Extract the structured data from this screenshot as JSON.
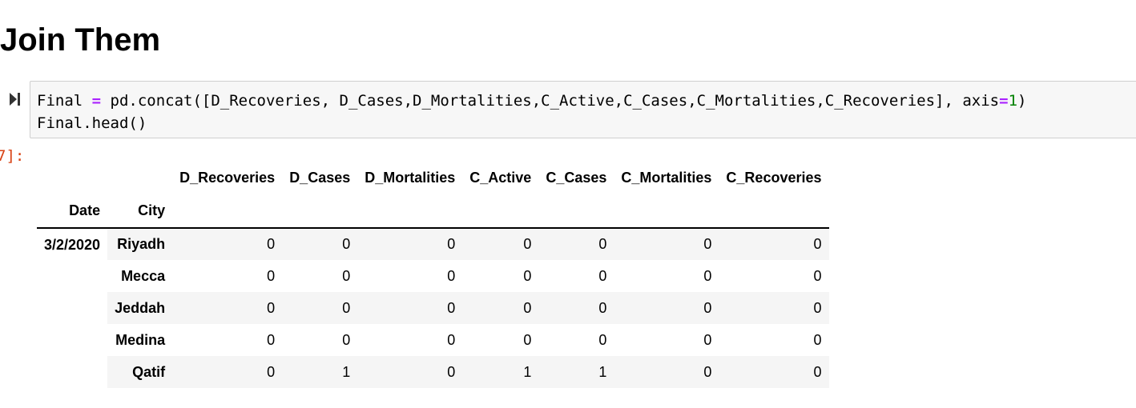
{
  "heading": "Join Them",
  "code_cell": {
    "line1": {
      "a": "Final ",
      "op": "=",
      "b": " pd.concat([D_Recoveries, D_Cases,D_Mortalities,C_Active,C_Cases,C_Mortalities,C_Recoveries], axis",
      "op2": "=",
      "num": "1",
      "c": ")"
    },
    "line2": "Final.head()"
  },
  "output_prompt": "7]:",
  "table": {
    "columns": [
      "D_Recoveries",
      "D_Cases",
      "D_Mortalities",
      "C_Active",
      "C_Cases",
      "C_Mortalities",
      "C_Recoveries"
    ],
    "index_names": [
      "Date",
      "City"
    ],
    "date": "3/2/2020",
    "rows": [
      {
        "city": "Riyadh",
        "values": [
          "0",
          "0",
          "0",
          "0",
          "0",
          "0",
          "0"
        ]
      },
      {
        "city": "Mecca",
        "values": [
          "0",
          "0",
          "0",
          "0",
          "0",
          "0",
          "0"
        ]
      },
      {
        "city": "Jeddah",
        "values": [
          "0",
          "0",
          "0",
          "0",
          "0",
          "0",
          "0"
        ]
      },
      {
        "city": "Medina",
        "values": [
          "0",
          "0",
          "0",
          "0",
          "0",
          "0",
          "0"
        ]
      },
      {
        "city": "Qatif",
        "values": [
          "0",
          "1",
          "0",
          "1",
          "1",
          "0",
          "0"
        ]
      }
    ]
  },
  "icons": {
    "run": "run-cell-icon"
  }
}
